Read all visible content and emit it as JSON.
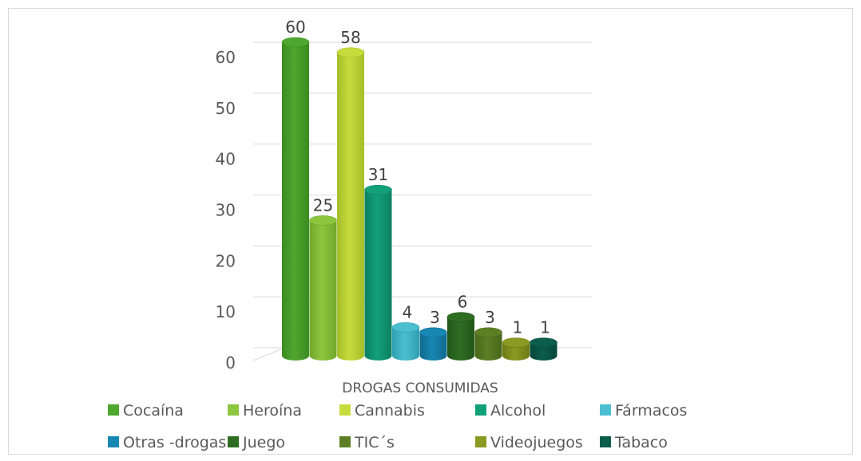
{
  "chart_data": {
    "type": "bar",
    "categories": [
      "DROGAS CONSUMIDAS"
    ],
    "series": [
      {
        "name": "Cocaína",
        "values": [
          60
        ],
        "color": "#4ea72e",
        "side": "#3c8a21"
      },
      {
        "name": "Heroína",
        "values": [
          25
        ],
        "color": "#8dc63f",
        "side": "#71a82a"
      },
      {
        "name": "Cannabis",
        "values": [
          58
        ],
        "color": "#c5dd3c",
        "side": "#a5bd28"
      },
      {
        "name": "Alcohol",
        "values": [
          31
        ],
        "color": "#12a079",
        "side": "#0c8061"
      },
      {
        "name": "Fármacos",
        "values": [
          4
        ],
        "color": "#4bbfd0",
        "side": "#2f9fb0"
      },
      {
        "name": "Otras -drogas",
        "values": [
          3
        ],
        "color": "#1787b3",
        "side": "#106a8e"
      },
      {
        "name": "Juego",
        "values": [
          6
        ],
        "color": "#2f6d23",
        "side": "#23561a"
      },
      {
        "name": "TIC´s",
        "values": [
          3
        ],
        "color": "#5d7f24",
        "side": "#48661a"
      },
      {
        "name": "Videojuegos",
        "values": [
          1
        ],
        "color": "#8a9a22",
        "side": "#6d7a16"
      },
      {
        "name": "Tabaco",
        "values": [
          1
        ],
        "color": "#0b5d4c",
        "side": "#07463a"
      }
    ],
    "ylim": [
      0,
      60
    ],
    "yticks": [
      "0",
      "10",
      "20",
      "30",
      "40",
      "50",
      "60"
    ],
    "grid": true,
    "legend_position": "bottom",
    "data_labels": true
  }
}
